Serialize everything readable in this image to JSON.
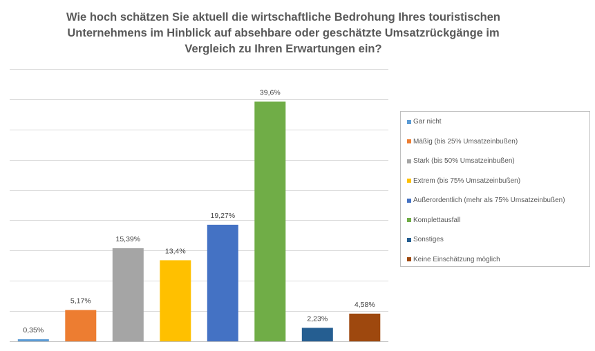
{
  "chart_data": {
    "type": "bar",
    "title": [
      "Wie hoch schätzen Sie aktuell die wirtschaftliche Bedrohung Ihres touristischen",
      "Unternehmens im Hinblick auf absehbare oder geschätzte Umsatzrückgänge im",
      "Vergleich zu Ihren Erwartungen ein?"
    ],
    "categories": [
      "Gar nicht",
      "Mäßig (bis 25% Umsatzeinbußen)",
      "Stark (bis 50% Umsatzeinbußen)",
      "Extrem (bis 75% Umsatzeinbußen)",
      "Außerordentlich (mehr als 75% Umsatzeinbußen)",
      "Komplettausfall",
      "Sonstiges",
      "Keine Einschätzung möglich"
    ],
    "values": [
      0.35,
      5.17,
      15.39,
      13.4,
      19.27,
      39.6,
      2.23,
      4.58
    ],
    "value_labels": [
      "0,35%",
      "5,17%",
      "15,39%",
      "13,4%",
      "19,27%",
      "39,6%",
      "2,23%",
      "4,58%"
    ],
    "colors": [
      "#5B9BD5",
      "#ED7D31",
      "#A5A5A5",
      "#FFC000",
      "#4472C4",
      "#70AD47",
      "#255E91",
      "#9E480E"
    ],
    "ylim": [
      0,
      45
    ],
    "y_gridlines": true,
    "legend_position": "right",
    "xlabel": "",
    "ylabel": ""
  }
}
